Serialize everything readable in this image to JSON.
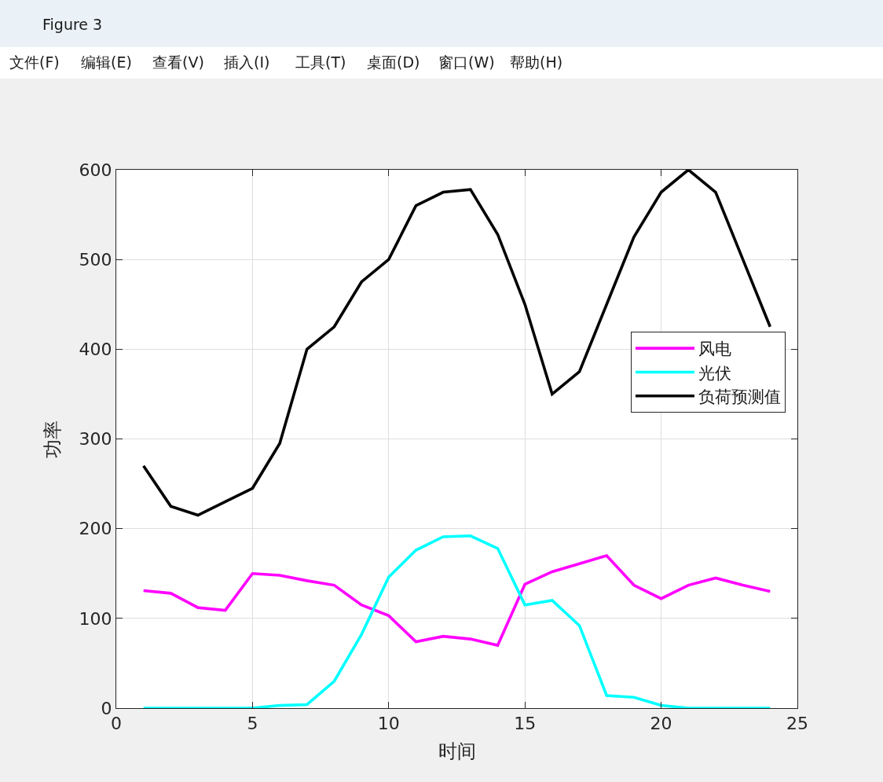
{
  "chart_data": {
    "type": "line",
    "xlabel": "时间",
    "ylabel": "功率",
    "annotations": [
      "Figure 3",
      "文件(F)",
      "编辑(E)",
      "查看(V)",
      "插入(I)",
      "工具(T)",
      "桌面(D)",
      "窗口(W)",
      "帮助(H)"
    ],
    "x": [
      1,
      2,
      3,
      4,
      5,
      6,
      7,
      8,
      9,
      10,
      11,
      12,
      13,
      14,
      15,
      16,
      17,
      18,
      19,
      20,
      21,
      22,
      23,
      24
    ],
    "series": [
      {
        "name": "风电",
        "color": "#ff00ff",
        "values": [
          131,
          128,
          112,
          109,
          150,
          148,
          142,
          137,
          115,
          103,
          74,
          80,
          77,
          70,
          138,
          152,
          161,
          170,
          137,
          122,
          137,
          145,
          137,
          130
        ]
      },
      {
        "name": "光伏",
        "color": "#00ffff",
        "values": [
          0,
          0,
          0,
          0,
          0,
          3,
          4,
          30,
          82,
          146,
          176,
          191,
          192,
          178,
          115,
          120,
          92,
          14,
          12,
          3,
          0,
          0,
          0,
          0
        ]
      },
      {
        "name": "负荷预测值",
        "color": "#000000",
        "values": [
          270,
          225,
          215,
          230,
          245,
          295,
          400,
          425,
          475,
          500,
          560,
          575,
          578,
          528,
          450,
          350,
          375,
          450,
          525,
          575,
          600,
          575,
          500,
          425
        ]
      }
    ],
    "xlim": [
      0,
      25
    ],
    "xticks": [
      0,
      5,
      10,
      15,
      20,
      25
    ],
    "ylim": [
      0,
      600
    ],
    "yticks": [
      0,
      100,
      200,
      300,
      400,
      500,
      600
    ],
    "grid": true,
    "legend": "right"
  }
}
